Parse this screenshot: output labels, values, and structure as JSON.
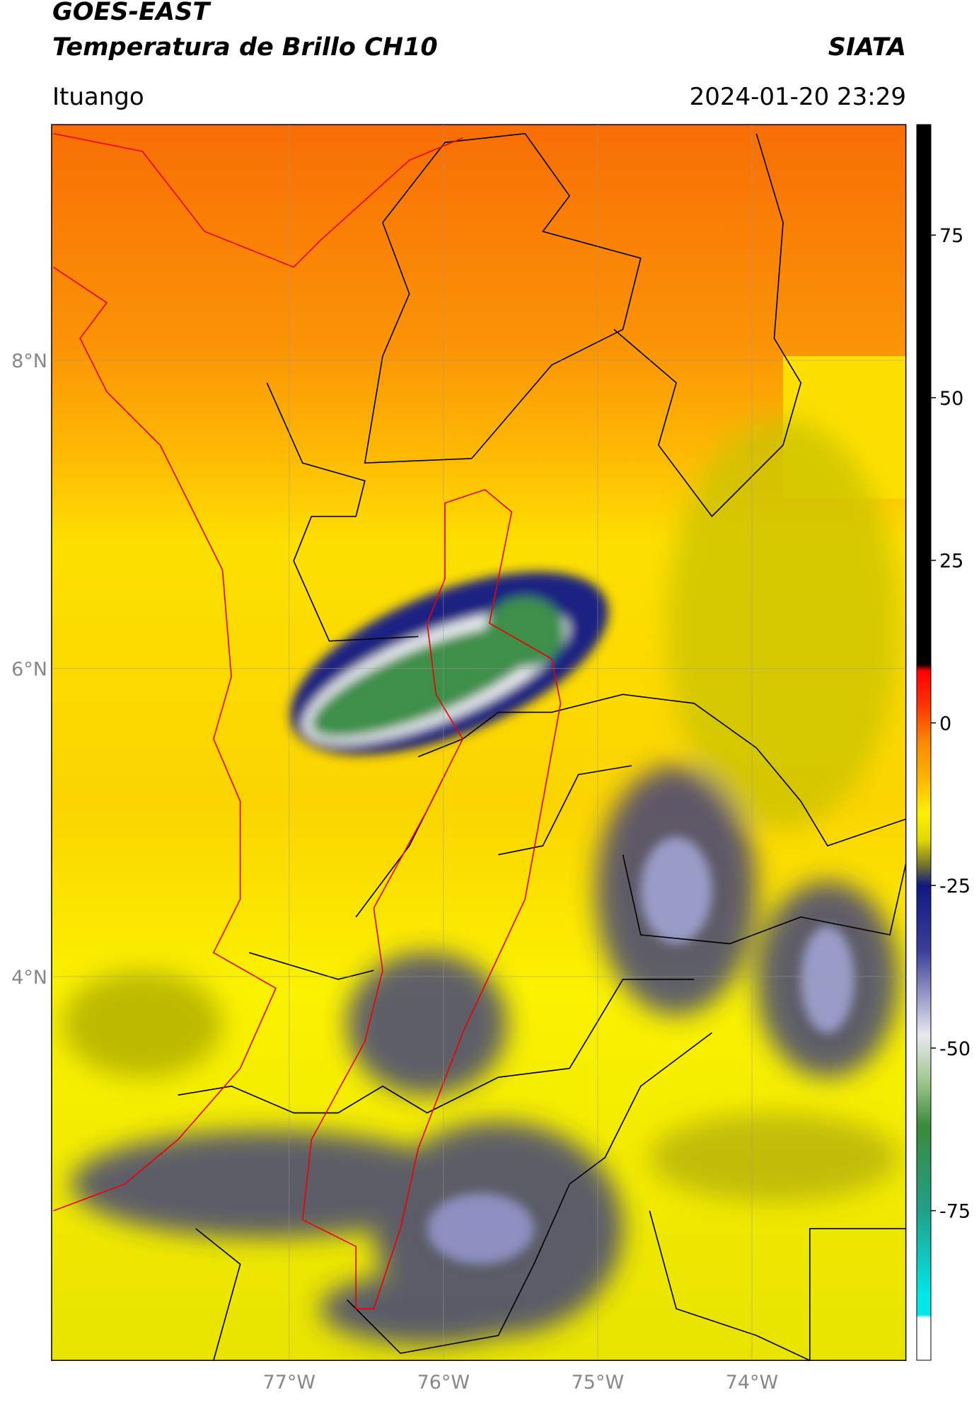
{
  "header": {
    "line1": "GOES-EAST",
    "line2": "Temperatura de Brillo CH10",
    "brand": "SIATA",
    "place": "Ituango",
    "datetime": "2024-01-20 23:29"
  },
  "map": {
    "xlim": [
      -78.54,
      -73.0
    ],
    "ylim": [
      1.51,
      9.53
    ],
    "xticks": [
      {
        "value": -77,
        "label": "77°W"
      },
      {
        "value": -76,
        "label": "76°W"
      },
      {
        "value": -75,
        "label": "75°W"
      },
      {
        "value": -74,
        "label": "74°W"
      }
    ],
    "yticks": [
      {
        "value": 8,
        "label": "8°N"
      },
      {
        "value": 6,
        "label": "6°N"
      },
      {
        "value": 4,
        "label": "4°N"
      }
    ],
    "grid": true
  },
  "colorbar": {
    "lim": [
      -98,
      92
    ],
    "ticks": [
      75,
      50,
      25,
      0,
      -25,
      -50,
      -75
    ]
  }
}
